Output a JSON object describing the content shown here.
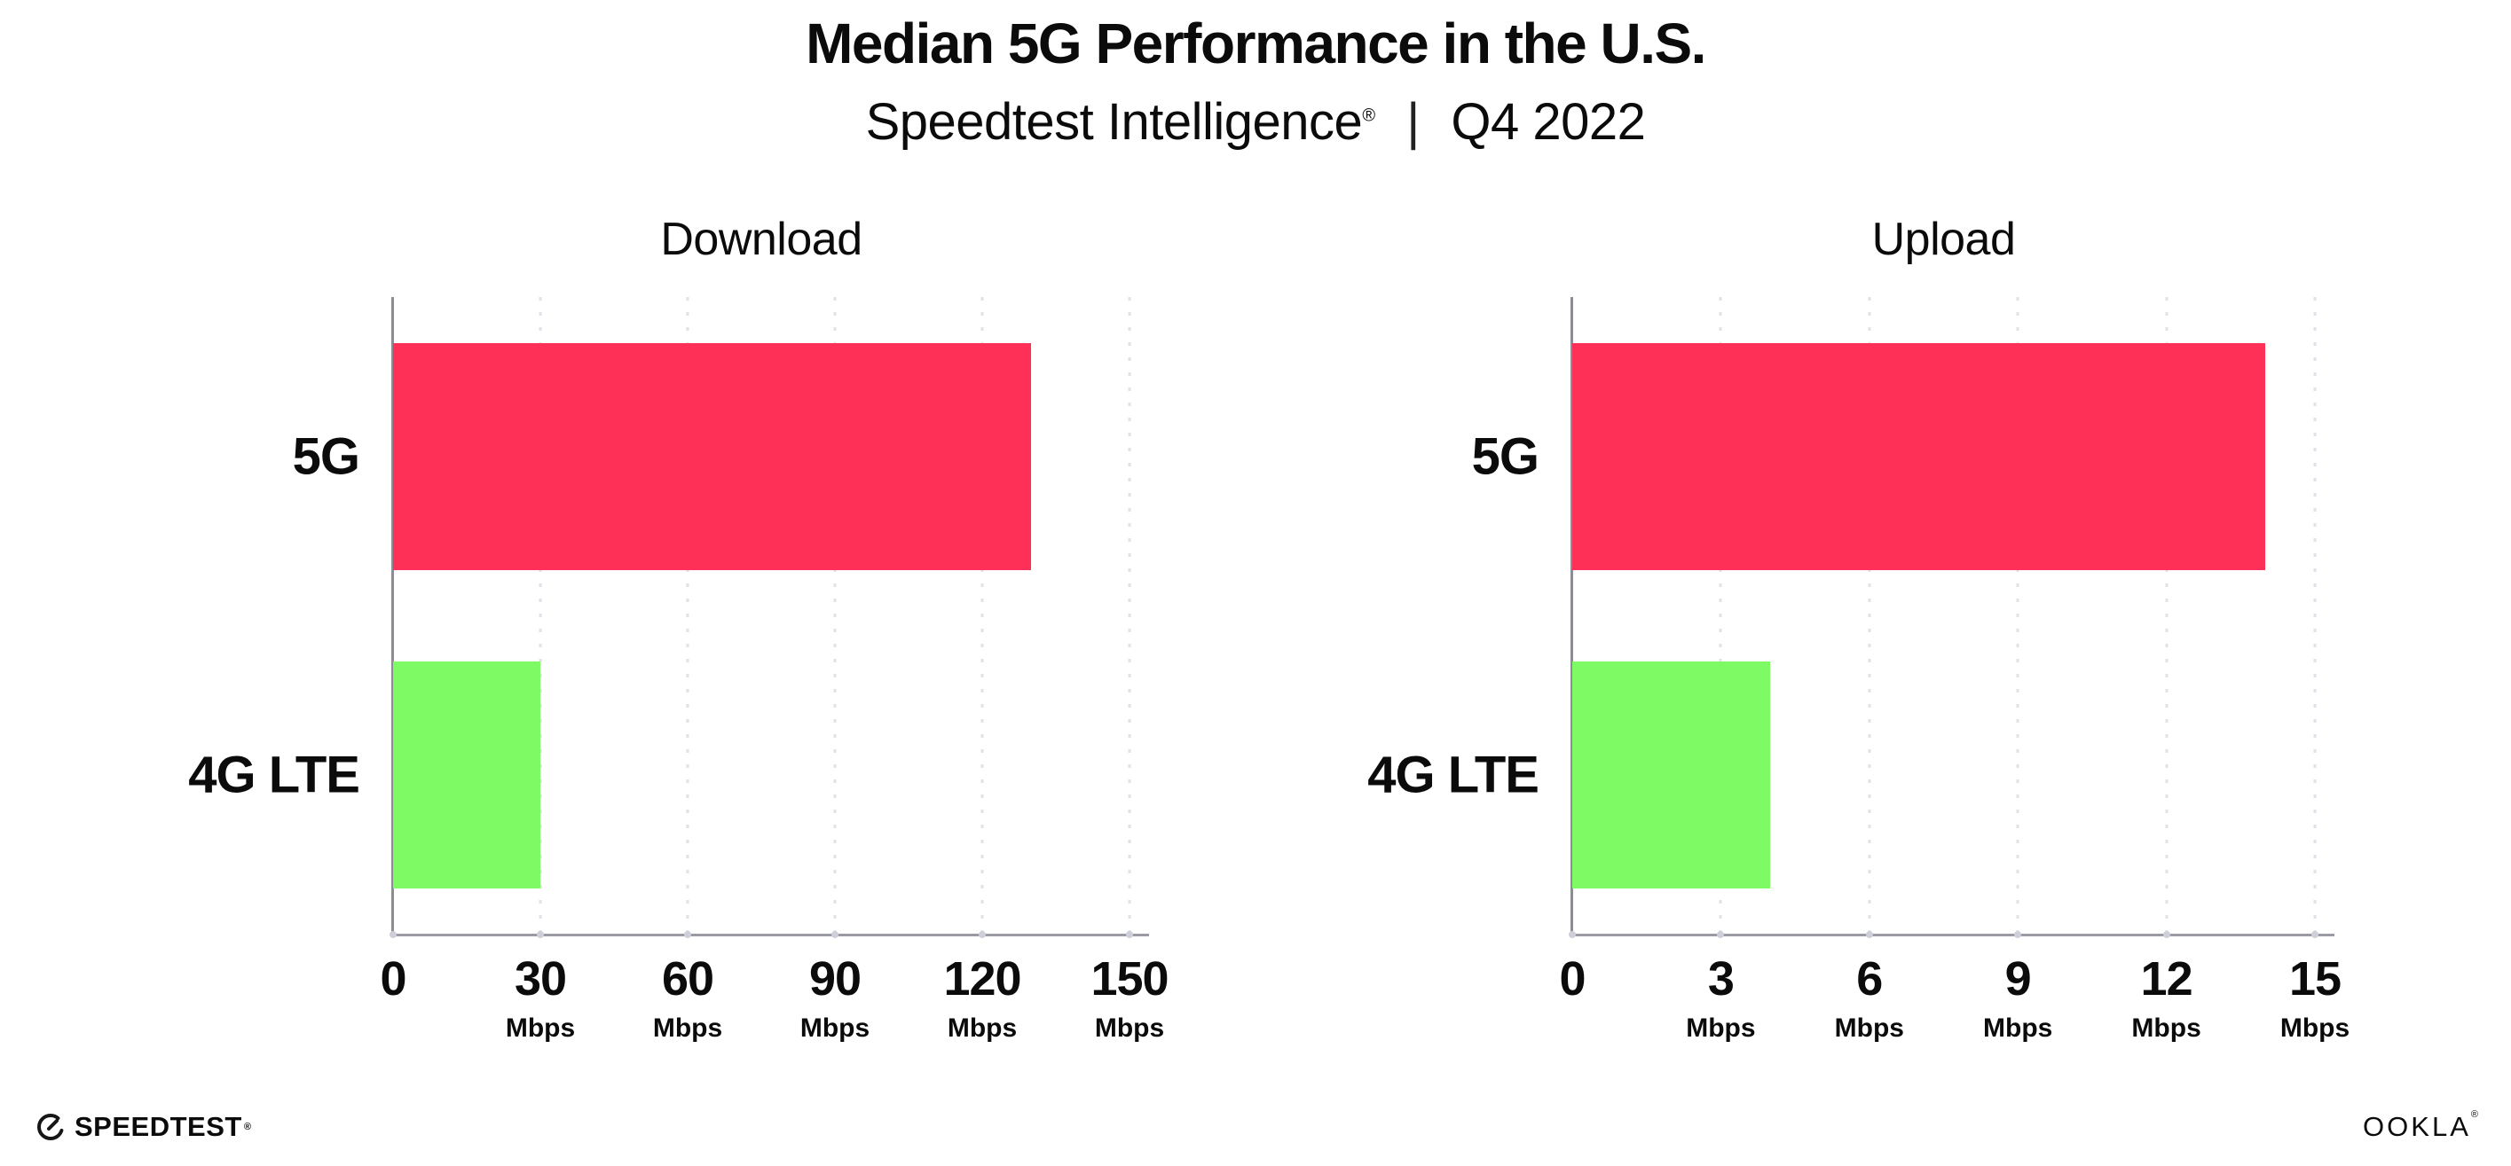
{
  "header": {
    "title": "Median 5G Performance in the U.S.",
    "subtitle_brand": "Speedtest Intelligence",
    "subtitle_reg": "®",
    "subtitle_divider": "|",
    "subtitle_period": "Q4 2022"
  },
  "chart_data": [
    {
      "type": "bar",
      "orientation": "horizontal",
      "title": "Download",
      "categories": [
        "5G",
        "4G LTE"
      ],
      "values": [
        130,
        30
      ],
      "unit": "Mbps",
      "xlim": [
        0,
        150
      ],
      "ticks": [
        0,
        30,
        60,
        90,
        120,
        150
      ],
      "series_colors": [
        "#ff3057",
        "#7dfa64"
      ],
      "grid": "vertical-dotted",
      "legend": "none"
    },
    {
      "type": "bar",
      "orientation": "horizontal",
      "title": "Upload",
      "categories": [
        "5G",
        "4G LTE"
      ],
      "values": [
        14,
        4
      ],
      "unit": "Mbps",
      "xlim": [
        0,
        15
      ],
      "ticks": [
        0,
        3,
        6,
        9,
        12,
        15
      ],
      "series_colors": [
        "#ff3057",
        "#7dfa64"
      ],
      "grid": "vertical-dotted",
      "legend": "none"
    }
  ],
  "colors": {
    "bar_5g": "#ff3057",
    "bar_4g_lte": "#7dfa64",
    "axis_line": "#9b9ba3",
    "gridline": "#e1e1ea",
    "text": "#0b0b0c",
    "background": "#ffffff"
  },
  "footer": {
    "speedtest_text": "SPEEDTEST",
    "speedtest_mark": "®",
    "ookla_o1": "O",
    "ookla_o2": "O",
    "ookla_k": "K",
    "ookla_l": "L",
    "ookla_a": "A",
    "ookla_mark": "®"
  }
}
